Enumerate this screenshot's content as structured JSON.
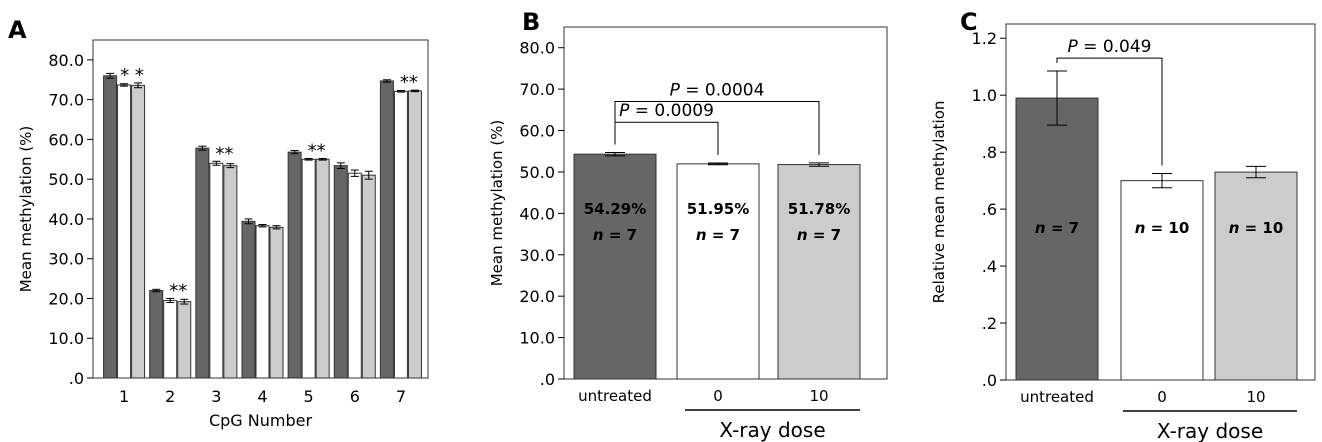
{
  "colors": {
    "untreated": "#666666",
    "dose0": "#ffffff",
    "dose10": "#cccccc",
    "axis": "#000000"
  },
  "chart_data": [
    {
      "panel": "A",
      "type": "bar",
      "xlabel": "CpG Number",
      "ylabel": "Mean methylation (%)",
      "ylim": [
        0,
        85
      ],
      "yticks": [
        0,
        10,
        20,
        30,
        40,
        50,
        60,
        70,
        80
      ],
      "ytick_labels": [
        ".0",
        "10.0",
        "20.0",
        "30.0",
        "40.0",
        "50.0",
        "60.0",
        "70.0",
        "80.0"
      ],
      "categories": [
        "1",
        "2",
        "3",
        "4",
        "5",
        "6",
        "7"
      ],
      "series": [
        {
          "color_key": "untreated",
          "values": [
            76.0,
            22.0,
            57.8,
            39.4,
            56.8,
            53.4,
            74.7
          ],
          "errors": [
            0.6,
            0.3,
            0.5,
            0.6,
            0.4,
            0.7,
            0.3
          ]
        },
        {
          "color_key": "dose0",
          "values": [
            73.7,
            19.5,
            54.0,
            38.3,
            55.0,
            51.5,
            72.1
          ],
          "errors": [
            0.3,
            0.5,
            0.5,
            0.3,
            0.2,
            0.8,
            0.2
          ]
        },
        {
          "color_key": "dose10",
          "values": [
            73.6,
            19.2,
            53.4,
            37.9,
            55.0,
            51.0,
            72.2
          ],
          "errors": [
            0.6,
            0.6,
            0.5,
            0.4,
            0.2,
            1.0,
            0.2
          ]
        }
      ],
      "annotations": [
        {
          "category_index": 0,
          "text": "* *"
        },
        {
          "category_index": 1,
          "text": "**"
        },
        {
          "category_index": 2,
          "text": "**"
        },
        {
          "category_index": 4,
          "text": "**"
        },
        {
          "category_index": 6,
          "text": "**"
        }
      ]
    },
    {
      "panel": "B",
      "type": "bar",
      "ylabel": "Mean methylation (%)",
      "group_label": "X-ray dose",
      "ylim": [
        0,
        85
      ],
      "yticks": [
        0,
        10,
        20,
        30,
        40,
        50,
        60,
        70,
        80
      ],
      "ytick_labels": [
        ".0",
        "10.0",
        "20.0",
        "30.0",
        "40.0",
        "50.0",
        "60.0",
        "70.0",
        "80.0"
      ],
      "categories": [
        "untreated",
        "0",
        "10"
      ],
      "color_keys": [
        "untreated",
        "dose0",
        "dose10"
      ],
      "values": [
        54.29,
        51.95,
        51.78
      ],
      "errors": [
        0.4,
        0.2,
        0.4
      ],
      "value_labels": [
        "54.29%",
        "51.95%",
        "51.78%"
      ],
      "n_labels": [
        "n = 7",
        "n = 7",
        "n = 7"
      ],
      "brackets": [
        {
          "from": 0,
          "to": 1,
          "y": 62,
          "p_prefix": "P",
          "p_value": " = 0.0009"
        },
        {
          "from": 0,
          "to": 2,
          "y": 67,
          "p_prefix": "P",
          "p_value": " = 0.0004"
        }
      ]
    },
    {
      "panel": "C",
      "type": "bar",
      "ylabel": "Relative mean methylation",
      "group_label": "X-ray dose",
      "ylim": [
        0,
        1.25
      ],
      "yticks": [
        0,
        0.2,
        0.4,
        0.6,
        0.8,
        1.0,
        1.2
      ],
      "ytick_labels": [
        ".0",
        ".2",
        ".4",
        ".6",
        ".8",
        "1.0",
        "1.2"
      ],
      "categories": [
        "untreated",
        "0",
        "10"
      ],
      "color_keys": [
        "untreated",
        "dose0",
        "dose10"
      ],
      "values": [
        0.99,
        0.7,
        0.73
      ],
      "errors": [
        0.095,
        0.025,
        0.02
      ],
      "n_labels": [
        "n = 7",
        "n = 10",
        "n = 10"
      ],
      "brackets": [
        {
          "from": 0,
          "to": 1,
          "y": 1.13,
          "p_prefix": "P",
          "p_value": " = 0.049"
        }
      ]
    }
  ]
}
